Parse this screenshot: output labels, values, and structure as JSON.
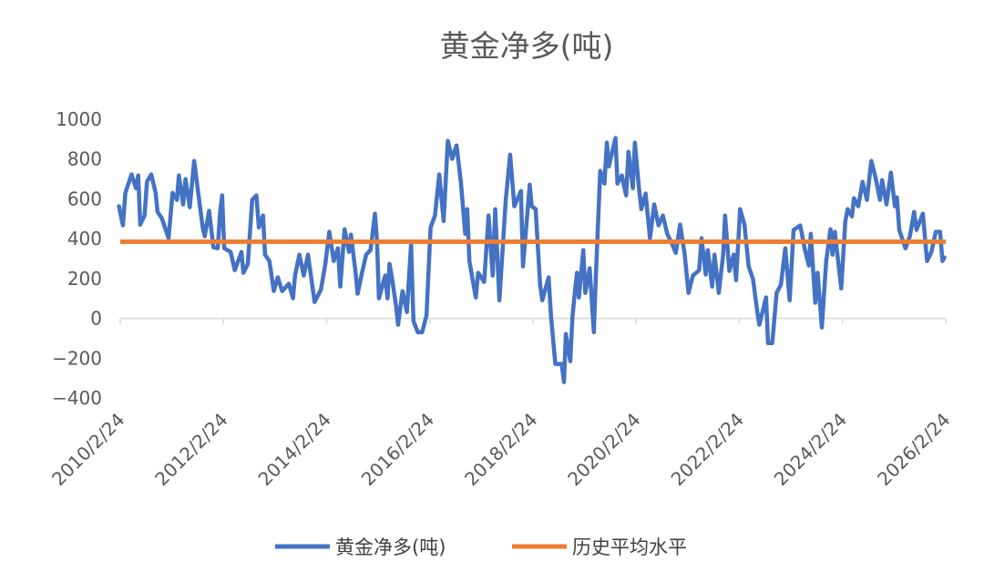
{
  "chart_data": {
    "type": "line",
    "title": "黄金净多(吨)",
    "xlabel": "",
    "ylabel": "",
    "xlim": [
      "2010-02-24",
      "2026-02-24"
    ],
    "ylim": [
      -400,
      1000
    ],
    "y_ticks": [
      "1000",
      "800",
      "600",
      "400",
      "200",
      "0",
      "−200",
      "−400"
    ],
    "y_tick_values": [
      1000,
      800,
      600,
      400,
      200,
      0,
      -200,
      -400
    ],
    "x_ticks": [
      "2010/2/24",
      "2012/2/24",
      "2014/2/24",
      "2016/2/24",
      "2018/2/24",
      "2020/2/24",
      "2022/2/24",
      "2024/2/24",
      "2026/2/24"
    ],
    "x_tick_dates": [
      "2010-02-24",
      "2012-02-24",
      "2014-02-24",
      "2016-02-24",
      "2018-02-24",
      "2020-02-24",
      "2022-02-24",
      "2024-02-24",
      "2026-02-24"
    ],
    "grid": false,
    "legend_position": "bottom",
    "colors": {
      "series": "#4472C4",
      "average": "#ED7D31",
      "text": "#595959",
      "axis": "#D9D9D9"
    },
    "series": [
      {
        "name": "黄金净多(吨)",
        "points": [
          [
            "2010-02-15",
            563
          ],
          [
            "2010-03-15",
            467
          ],
          [
            "2010-04-01",
            631
          ],
          [
            "2010-05-15",
            723
          ],
          [
            "2010-06-15",
            654
          ],
          [
            "2010-07-01",
            718
          ],
          [
            "2010-07-15",
            471
          ],
          [
            "2010-08-15",
            517
          ],
          [
            "2010-09-01",
            686
          ],
          [
            "2010-10-01",
            723
          ],
          [
            "2010-11-01",
            631
          ],
          [
            "2010-11-15",
            535
          ],
          [
            "2010-12-15",
            503
          ],
          [
            "2011-02-01",
            403
          ],
          [
            "2011-03-01",
            631
          ],
          [
            "2011-04-01",
            595
          ],
          [
            "2011-04-15",
            718
          ],
          [
            "2011-05-15",
            572
          ],
          [
            "2011-06-01",
            700
          ],
          [
            "2011-07-01",
            558
          ],
          [
            "2011-08-01",
            791
          ],
          [
            "2011-09-01",
            618
          ],
          [
            "2011-10-01",
            457
          ],
          [
            "2011-10-15",
            412
          ],
          [
            "2011-11-15",
            540
          ],
          [
            "2011-12-15",
            357
          ],
          [
            "2012-01-15",
            352
          ],
          [
            "2012-02-01",
            535
          ],
          [
            "2012-02-15",
            618
          ],
          [
            "2012-03-01",
            352
          ],
          [
            "2012-04-15",
            334
          ],
          [
            "2012-05-15",
            242
          ],
          [
            "2012-07-01",
            334
          ],
          [
            "2012-07-15",
            229
          ],
          [
            "2012-08-15",
            274
          ],
          [
            "2012-09-15",
            595
          ],
          [
            "2012-10-15",
            618
          ],
          [
            "2012-11-01",
            457
          ],
          [
            "2012-12-01",
            517
          ],
          [
            "2012-12-15",
            320
          ],
          [
            "2013-01-15",
            288
          ],
          [
            "2013-02-15",
            137
          ],
          [
            "2013-03-15",
            206
          ],
          [
            "2013-04-15",
            137
          ],
          [
            "2013-06-01",
            174
          ],
          [
            "2013-07-01",
            101
          ],
          [
            "2013-07-15",
            215
          ],
          [
            "2013-08-15",
            320
          ],
          [
            "2013-09-15",
            215
          ],
          [
            "2013-10-15",
            320
          ],
          [
            "2013-12-01",
            82
          ],
          [
            "2014-01-15",
            146
          ],
          [
            "2014-02-15",
            274
          ],
          [
            "2014-03-15",
            435
          ],
          [
            "2014-04-15",
            288
          ],
          [
            "2014-05-15",
            352
          ],
          [
            "2014-06-01",
            160
          ],
          [
            "2014-07-01",
            448
          ],
          [
            "2014-08-01",
            334
          ],
          [
            "2014-08-15",
            421
          ],
          [
            "2014-09-15",
            242
          ],
          [
            "2014-10-01",
            124
          ],
          [
            "2014-11-01",
            229
          ],
          [
            "2014-12-01",
            320
          ],
          [
            "2015-01-01",
            343
          ],
          [
            "2015-02-01",
            526
          ],
          [
            "2015-02-15",
            398
          ],
          [
            "2015-03-01",
            101
          ],
          [
            "2015-04-15",
            215
          ],
          [
            "2015-05-01",
            101
          ],
          [
            "2015-05-15",
            274
          ],
          [
            "2015-06-01",
            206
          ],
          [
            "2015-07-01",
            59
          ],
          [
            "2015-07-15",
            -32
          ],
          [
            "2015-08-15",
            137
          ],
          [
            "2015-09-15",
            32
          ],
          [
            "2015-10-15",
            375
          ],
          [
            "2015-11-01",
            -14
          ],
          [
            "2015-12-01",
            -69
          ],
          [
            "2016-01-01",
            -69
          ],
          [
            "2016-02-01",
            14
          ],
          [
            "2016-03-01",
            457
          ],
          [
            "2016-04-01",
            517
          ],
          [
            "2016-05-01",
            723
          ],
          [
            "2016-06-01",
            489
          ],
          [
            "2016-07-01",
            892
          ],
          [
            "2016-08-01",
            801
          ],
          [
            "2016-09-01",
            869
          ],
          [
            "2016-10-01",
            686
          ],
          [
            "2016-11-01",
            425
          ],
          [
            "2016-11-15",
            549
          ],
          [
            "2016-12-01",
            288
          ],
          [
            "2017-01-15",
            105
          ],
          [
            "2017-02-01",
            229
          ],
          [
            "2017-03-15",
            183
          ],
          [
            "2017-04-15",
            517
          ],
          [
            "2017-05-15",
            215
          ],
          [
            "2017-06-01",
            549
          ],
          [
            "2017-07-01",
            91
          ],
          [
            "2017-08-15",
            595
          ],
          [
            "2017-09-15",
            823
          ],
          [
            "2017-10-15",
            563
          ],
          [
            "2017-12-01",
            640
          ],
          [
            "2017-12-15",
            261
          ],
          [
            "2018-02-01",
            672
          ],
          [
            "2018-02-15",
            563
          ],
          [
            "2018-03-15",
            549
          ],
          [
            "2018-04-15",
            169
          ],
          [
            "2018-05-01",
            91
          ],
          [
            "2018-06-15",
            206
          ],
          [
            "2018-07-01",
            14
          ],
          [
            "2018-08-01",
            -229
          ],
          [
            "2018-09-15",
            -229
          ],
          [
            "2018-10-01",
            -320
          ],
          [
            "2018-10-15",
            -78
          ],
          [
            "2018-11-15",
            -215
          ],
          [
            "2018-12-01",
            14
          ],
          [
            "2019-01-01",
            229
          ],
          [
            "2019-01-15",
            105
          ],
          [
            "2019-02-15",
            343
          ],
          [
            "2019-03-01",
            128
          ],
          [
            "2019-04-01",
            252
          ],
          [
            "2019-05-01",
            -69
          ],
          [
            "2019-05-15",
            215
          ],
          [
            "2019-06-15",
            741
          ],
          [
            "2019-07-15",
            677
          ],
          [
            "2019-08-01",
            883
          ],
          [
            "2019-08-15",
            764
          ],
          [
            "2019-10-01",
            906
          ],
          [
            "2019-10-15",
            677
          ],
          [
            "2019-11-15",
            718
          ],
          [
            "2019-12-15",
            618
          ],
          [
            "2020-01-01",
            837
          ],
          [
            "2020-02-01",
            654
          ],
          [
            "2020-02-15",
            883
          ],
          [
            "2020-03-15",
            654
          ],
          [
            "2020-04-01",
            549
          ],
          [
            "2020-05-01",
            627
          ],
          [
            "2020-06-01",
            403
          ],
          [
            "2020-07-01",
            572
          ],
          [
            "2020-08-01",
            467
          ],
          [
            "2020-09-01",
            517
          ],
          [
            "2020-10-01",
            425
          ],
          [
            "2020-11-01",
            380
          ],
          [
            "2020-12-01",
            329
          ],
          [
            "2021-01-01",
            471
          ],
          [
            "2021-02-01",
            329
          ],
          [
            "2021-03-01",
            128
          ],
          [
            "2021-04-01",
            215
          ],
          [
            "2021-05-15",
            242
          ],
          [
            "2021-06-01",
            403
          ],
          [
            "2021-07-01",
            220
          ],
          [
            "2021-07-15",
            343
          ],
          [
            "2021-08-15",
            160
          ],
          [
            "2021-09-01",
            320
          ],
          [
            "2021-10-01",
            128
          ],
          [
            "2021-11-01",
            320
          ],
          [
            "2021-11-15",
            517
          ],
          [
            "2021-12-15",
            238
          ],
          [
            "2022-01-15",
            320
          ],
          [
            "2022-02-01",
            192
          ],
          [
            "2022-03-01",
            549
          ],
          [
            "2022-04-01",
            471
          ],
          [
            "2022-05-01",
            261
          ],
          [
            "2022-06-01",
            197
          ],
          [
            "2022-07-01",
            32
          ],
          [
            "2022-07-15",
            -32
          ],
          [
            "2022-09-01",
            105
          ],
          [
            "2022-09-15",
            -124
          ],
          [
            "2022-10-15",
            -124
          ],
          [
            "2022-11-15",
            128
          ],
          [
            "2022-12-15",
            169
          ],
          [
            "2023-01-15",
            352
          ],
          [
            "2023-02-15",
            91
          ],
          [
            "2023-03-15",
            444
          ],
          [
            "2023-05-01",
            467
          ],
          [
            "2023-06-01",
            352
          ],
          [
            "2023-07-01",
            265
          ],
          [
            "2023-07-15",
            425
          ],
          [
            "2023-08-15",
            78
          ],
          [
            "2023-09-01",
            229
          ],
          [
            "2023-10-01",
            -46
          ],
          [
            "2023-11-01",
            288
          ],
          [
            "2023-12-01",
            448
          ],
          [
            "2023-12-15",
            320
          ],
          [
            "2024-01-01",
            435
          ],
          [
            "2024-02-15",
            151
          ],
          [
            "2024-03-15",
            489
          ],
          [
            "2024-04-01",
            549
          ],
          [
            "2024-05-01",
            512
          ],
          [
            "2024-05-15",
            604
          ],
          [
            "2024-06-15",
            563
          ],
          [
            "2024-07-15",
            686
          ],
          [
            "2024-08-15",
            595
          ],
          [
            "2024-09-15",
            791
          ],
          [
            "2024-10-15",
            709
          ],
          [
            "2024-11-15",
            595
          ],
          [
            "2024-12-01",
            695
          ],
          [
            "2025-01-01",
            572
          ],
          [
            "2025-02-01",
            732
          ],
          [
            "2025-03-01",
            563
          ],
          [
            "2025-03-15",
            608
          ],
          [
            "2025-04-01",
            444
          ],
          [
            "2025-05-15",
            352
          ],
          [
            "2025-06-15",
            412
          ],
          [
            "2025-07-15",
            535
          ],
          [
            "2025-08-01",
            444
          ],
          [
            "2025-09-15",
            526
          ],
          [
            "2025-10-15",
            288
          ],
          [
            "2025-11-15",
            334
          ],
          [
            "2025-12-15",
            435
          ],
          [
            "2026-01-15",
            435
          ],
          [
            "2026-02-01",
            288
          ],
          [
            "2026-02-15",
            306
          ]
        ]
      },
      {
        "name": "历史平均水平",
        "value": 385
      }
    ]
  }
}
